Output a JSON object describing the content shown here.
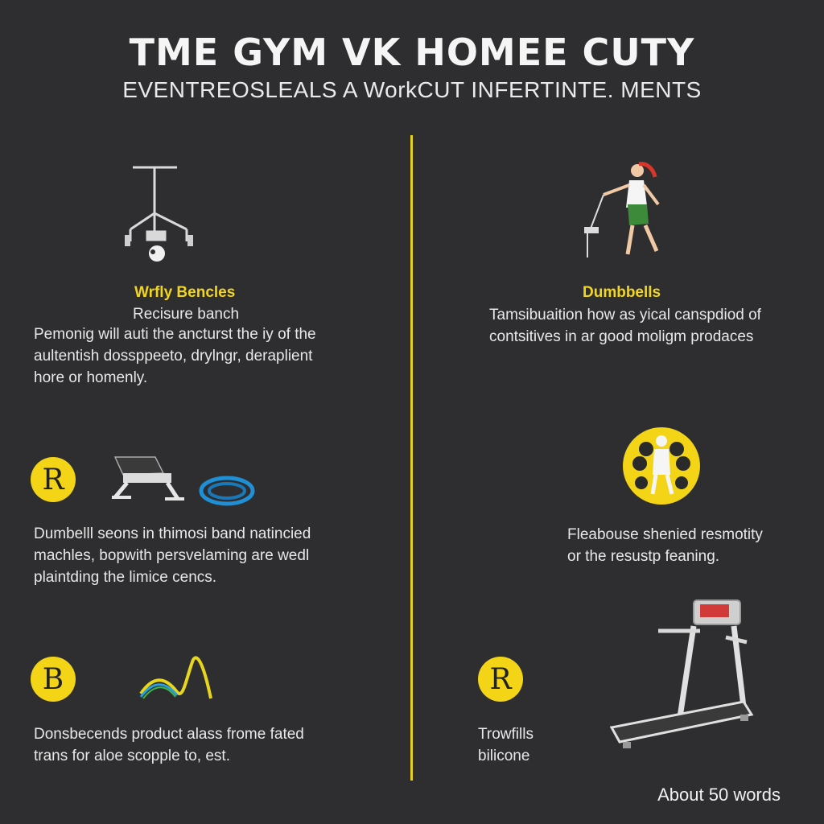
{
  "header": {
    "title": "TME GYM VK HOMEE CUTY",
    "subtitle": "EVENTREOSLEALS A WorkCUT INFERTINTE. MENTS"
  },
  "left_column": {
    "section1": {
      "heading": "Wrfly Bencles",
      "subheading": "Recisure banch",
      "body_lines": [
        "Pemonig will auti the ancturst the iy of the",
        "aultentish dossppeeto, drylngr, deraplient",
        "hore or homenly."
      ]
    },
    "section2": {
      "badge": "R",
      "body_lines": [
        "Dumbelll seons in thimosi band natincied",
        "machles, bopwith persvelaming are wedl",
        "plaintding the limice cencs."
      ]
    },
    "section3": {
      "badge": "B",
      "body_lines": [
        "Donsbecends product alass frome fated",
        "trans for aloe scopple to, est."
      ]
    }
  },
  "right_column": {
    "section1": {
      "heading": "Dumbbells",
      "body_lines": [
        "Tamsibuaition how as yical canspdiod of",
        "contsitives in ar good moligm prodaces"
      ]
    },
    "section2": {
      "body_lines": [
        "Fleabouse shenied resmotity",
        "or the resustp feaning."
      ]
    },
    "section3": {
      "badge": "R",
      "body_lines": [
        "Trowfills",
        "bilicone"
      ]
    }
  },
  "footer": {
    "note": "About 50 words"
  },
  "colors": {
    "background": "#2e2e30",
    "accent": "#f3d417",
    "text": "#ececec"
  },
  "icons": {
    "weight_rack": "weight-rack-icon",
    "runner": "runner-icon",
    "bench": "bench-icon",
    "jump_rope": "jump-rope-icon",
    "dumbbell_athlete": "dumbbell-athlete-icon",
    "resistance_band": "resistance-band-icon",
    "treadmill": "treadmill-icon"
  }
}
